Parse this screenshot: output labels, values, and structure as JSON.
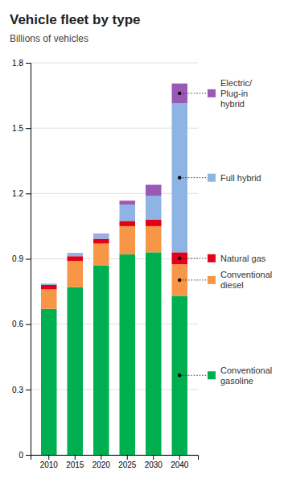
{
  "chart_data": {
    "type": "bar",
    "title": "Vehicle fleet by type",
    "subtitle": "Billions of vehicles",
    "categories": [
      "2010",
      "2015",
      "2020",
      "2025",
      "2030",
      "2040"
    ],
    "series": [
      {
        "name": "Conventional\ngasoline",
        "color": "#00b050",
        "values": [
          0.67,
          0.77,
          0.87,
          0.92,
          0.93,
          0.73
        ]
      },
      {
        "name": "Conventional\ndiesel",
        "color": "#f79646",
        "values": [
          0.09,
          0.12,
          0.1,
          0.13,
          0.12,
          0.145
        ]
      },
      {
        "name": "Natural gas",
        "color": "#e2001a",
        "values": [
          0.02,
          0.022,
          0.022,
          0.024,
          0.03,
          0.055
        ]
      },
      {
        "name": "Full hybrid",
        "color": "#8db4e2",
        "values": [
          0.005,
          0.012,
          0.02,
          0.075,
          0.11,
          0.685
        ]
      },
      {
        "name": "Electric/\nPlug-in\nhybrid",
        "color": "#9b59b6",
        "values": [
          0.001,
          0.002,
          0.003,
          0.018,
          0.05,
          0.09
        ]
      }
    ],
    "ylim": [
      0,
      1.8
    ],
    "yticks": [
      0,
      0.3,
      0.6,
      0.9,
      1.2,
      1.5,
      1.8
    ],
    "grid": true,
    "stacked": true,
    "legend": "right"
  }
}
